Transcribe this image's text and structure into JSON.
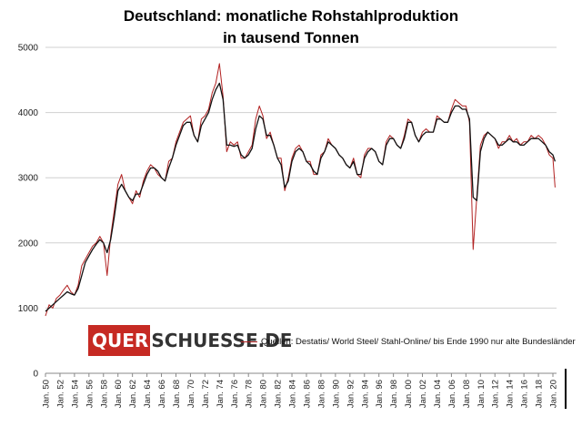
{
  "chart_data": {
    "type": "line",
    "title_line1": "Deutschland: monatliche Rohstahlproduktion",
    "title_line2": "in tausend Tonnen",
    "xlabel": "",
    "ylabel": "",
    "ylim": [
      0,
      5000
    ],
    "yticks": [
      0,
      1000,
      2000,
      3000,
      4000,
      5000
    ],
    "xlim": [
      1950,
      2020.5
    ],
    "xtick_labels": [
      "Jan. 50",
      "Jan. 52",
      "Jan. 54",
      "Jan. 56",
      "Jan. 58",
      "Jan. 60",
      "Jan. 62",
      "Jan. 64",
      "Jan. 66",
      "Jan. 68",
      "Jan. 70",
      "Jan. 72",
      "Jan. 74",
      "Jan. 76",
      "Jan. 78",
      "Jan. 80",
      "Jan. 82",
      "Jan. 84",
      "Jan. 86",
      "Jan. 88",
      "Jan. 90",
      "Jan. 92",
      "Jan. 94",
      "Jan. 96",
      "Jan. 98",
      "Jan. 00",
      "Jan. 02",
      "Jan. 04",
      "Jan. 06",
      "Jan. 08",
      "Jan. 10",
      "Jan. 12",
      "Jan. 14",
      "Jan. 16",
      "Jan. 18",
      "Jan. 20"
    ],
    "grid": true,
    "series": [
      {
        "name": "Quellen: Destatis/ World Steel/ Stahl-Online/ bis Ende 1990 nur alte Bundesländer",
        "color": "#b22222",
        "x": [
          1950.0,
          1950.5,
          1951.0,
          1951.5,
          1952.0,
          1952.5,
          1953.0,
          1953.5,
          1954.0,
          1954.5,
          1955.0,
          1955.5,
          1956.0,
          1956.5,
          1957.0,
          1957.5,
          1958.0,
          1958.5,
          1959.0,
          1959.5,
          1960.0,
          1960.5,
          1961.0,
          1961.5,
          1962.0,
          1962.5,
          1963.0,
          1963.5,
          1964.0,
          1964.5,
          1965.0,
          1965.5,
          1966.0,
          1966.5,
          1967.0,
          1967.5,
          1968.0,
          1968.5,
          1969.0,
          1969.5,
          1970.0,
          1970.5,
          1971.0,
          1971.5,
          1972.0,
          1972.5,
          1973.0,
          1973.5,
          1974.0,
          1974.5,
          1975.0,
          1975.5,
          1976.0,
          1976.5,
          1977.0,
          1977.5,
          1978.0,
          1978.5,
          1979.0,
          1979.5,
          1980.0,
          1980.5,
          1981.0,
          1981.5,
          1982.0,
          1982.5,
          1983.0,
          1983.5,
          1984.0,
          1984.5,
          1985.0,
          1985.5,
          1986.0,
          1986.5,
          1987.0,
          1987.5,
          1988.0,
          1988.5,
          1989.0,
          1989.5,
          1990.0,
          1990.5,
          1991.0,
          1991.5,
          1992.0,
          1992.5,
          1993.0,
          1993.5,
          1994.0,
          1994.5,
          1995.0,
          1995.5,
          1996.0,
          1996.5,
          1997.0,
          1997.5,
          1998.0,
          1998.5,
          1999.0,
          1999.5,
          2000.0,
          2000.5,
          2001.0,
          2001.5,
          2002.0,
          2002.5,
          2003.0,
          2003.5,
          2004.0,
          2004.5,
          2005.0,
          2005.5,
          2006.0,
          2006.5,
          2007.0,
          2007.5,
          2008.0,
          2008.5,
          2009.0,
          2009.5,
          2010.0,
          2010.5,
          2011.0,
          2011.5,
          2012.0,
          2012.5,
          2013.0,
          2013.5,
          2014.0,
          2014.5,
          2015.0,
          2015.5,
          2016.0,
          2016.5,
          2017.0,
          2017.5,
          2018.0,
          2018.5,
          2019.0,
          2019.5,
          2020.0,
          2020.3
        ],
        "values": [
          880,
          1050,
          1000,
          1150,
          1200,
          1280,
          1350,
          1250,
          1200,
          1350,
          1650,
          1750,
          1850,
          1950,
          2000,
          2100,
          2000,
          1500,
          2100,
          2500,
          2900,
          3050,
          2800,
          2700,
          2600,
          2800,
          2700,
          2950,
          3100,
          3200,
          3150,
          3050,
          3000,
          2950,
          3250,
          3300,
          3550,
          3700,
          3850,
          3900,
          3950,
          3650,
          3550,
          3900,
          3950,
          4050,
          4300,
          4450,
          4750,
          4250,
          3400,
          3550,
          3500,
          3550,
          3300,
          3300,
          3400,
          3500,
          3900,
          4100,
          3950,
          3600,
          3700,
          3500,
          3300,
          3300,
          2800,
          3000,
          3300,
          3450,
          3500,
          3400,
          3250,
          3250,
          3050,
          3050,
          3350,
          3400,
          3600,
          3500,
          3450,
          3350,
          3300,
          3200,
          3150,
          3300,
          3050,
          3000,
          3350,
          3450,
          3450,
          3400,
          3250,
          3200,
          3550,
          3650,
          3600,
          3500,
          3450,
          3650,
          3900,
          3850,
          3650,
          3550,
          3700,
          3750,
          3700,
          3700,
          3950,
          3900,
          3850,
          3850,
          4050,
          4200,
          4150,
          4100,
          4100,
          3850,
          1900,
          2700,
          3500,
          3650,
          3700,
          3650,
          3600,
          3450,
          3550,
          3550,
          3650,
          3550,
          3600,
          3500,
          3550,
          3550,
          3650,
          3600,
          3650,
          3600,
          3500,
          3350,
          3300,
          2850
        ]
      },
      {
        "name": "",
        "color": "#111111",
        "x": [
          1950.0,
          1950.5,
          1951.0,
          1951.5,
          1952.0,
          1952.5,
          1953.0,
          1953.5,
          1954.0,
          1954.5,
          1955.0,
          1955.5,
          1956.0,
          1956.5,
          1957.0,
          1957.5,
          1958.0,
          1958.5,
          1959.0,
          1959.5,
          1960.0,
          1960.5,
          1961.0,
          1961.5,
          1962.0,
          1962.5,
          1963.0,
          1963.5,
          1964.0,
          1964.5,
          1965.0,
          1965.5,
          1966.0,
          1966.5,
          1967.0,
          1967.5,
          1968.0,
          1968.5,
          1969.0,
          1969.5,
          1970.0,
          1970.5,
          1971.0,
          1971.5,
          1972.0,
          1972.5,
          1973.0,
          1973.5,
          1974.0,
          1974.5,
          1975.0,
          1975.5,
          1976.0,
          1976.5,
          1977.0,
          1977.5,
          1978.0,
          1978.5,
          1979.0,
          1979.5,
          1980.0,
          1980.5,
          1981.0,
          1981.5,
          1982.0,
          1982.5,
          1983.0,
          1983.5,
          1984.0,
          1984.5,
          1985.0,
          1985.5,
          1986.0,
          1986.5,
          1987.0,
          1987.5,
          1988.0,
          1988.5,
          1989.0,
          1989.5,
          1990.0,
          1990.5,
          1991.0,
          1991.5,
          1992.0,
          1992.5,
          1993.0,
          1993.5,
          1994.0,
          1994.5,
          1995.0,
          1995.5,
          1996.0,
          1996.5,
          1997.0,
          1997.5,
          1998.0,
          1998.5,
          1999.0,
          1999.5,
          2000.0,
          2000.5,
          2001.0,
          2001.5,
          2002.0,
          2002.5,
          2003.0,
          2003.5,
          2004.0,
          2004.5,
          2005.0,
          2005.5,
          2006.0,
          2006.5,
          2007.0,
          2007.5,
          2008.0,
          2008.5,
          2009.0,
          2009.5,
          2010.0,
          2010.5,
          2011.0,
          2011.5,
          2012.0,
          2012.5,
          2013.0,
          2013.5,
          2014.0,
          2014.5,
          2015.0,
          2015.5,
          2016.0,
          2016.5,
          2017.0,
          2017.5,
          2018.0,
          2018.5,
          2019.0,
          2019.5,
          2020.0,
          2020.3
        ],
        "values": [
          950,
          1000,
          1050,
          1100,
          1150,
          1200,
          1250,
          1220,
          1200,
          1300,
          1500,
          1700,
          1800,
          1900,
          1980,
          2050,
          2000,
          1850,
          2050,
          2400,
          2800,
          2900,
          2800,
          2700,
          2650,
          2750,
          2750,
          2900,
          3050,
          3150,
          3150,
          3100,
          3000,
          2950,
          3150,
          3300,
          3500,
          3650,
          3800,
          3850,
          3850,
          3650,
          3550,
          3800,
          3900,
          4000,
          4200,
          4350,
          4450,
          4200,
          3500,
          3500,
          3480,
          3500,
          3350,
          3300,
          3350,
          3450,
          3750,
          3950,
          3900,
          3650,
          3650,
          3500,
          3300,
          3200,
          2850,
          2950,
          3250,
          3400,
          3450,
          3400,
          3250,
          3200,
          3100,
          3050,
          3300,
          3400,
          3550,
          3500,
          3450,
          3350,
          3300,
          3200,
          3150,
          3250,
          3050,
          3050,
          3300,
          3400,
          3450,
          3400,
          3250,
          3200,
          3500,
          3600,
          3600,
          3500,
          3450,
          3600,
          3850,
          3850,
          3650,
          3550,
          3650,
          3700,
          3700,
          3700,
          3900,
          3900,
          3850,
          3850,
          4000,
          4100,
          4100,
          4050,
          4050,
          3900,
          2700,
          2650,
          3400,
          3600,
          3700,
          3650,
          3600,
          3500,
          3500,
          3550,
          3600,
          3550,
          3550,
          3500,
          3500,
          3550,
          3600,
          3600,
          3600,
          3550,
          3500,
          3400,
          3350,
          3250
        ]
      }
    ]
  },
  "logo": {
    "text_boxed": "QUER",
    "text_rest": "SCHUESSE.DE"
  }
}
